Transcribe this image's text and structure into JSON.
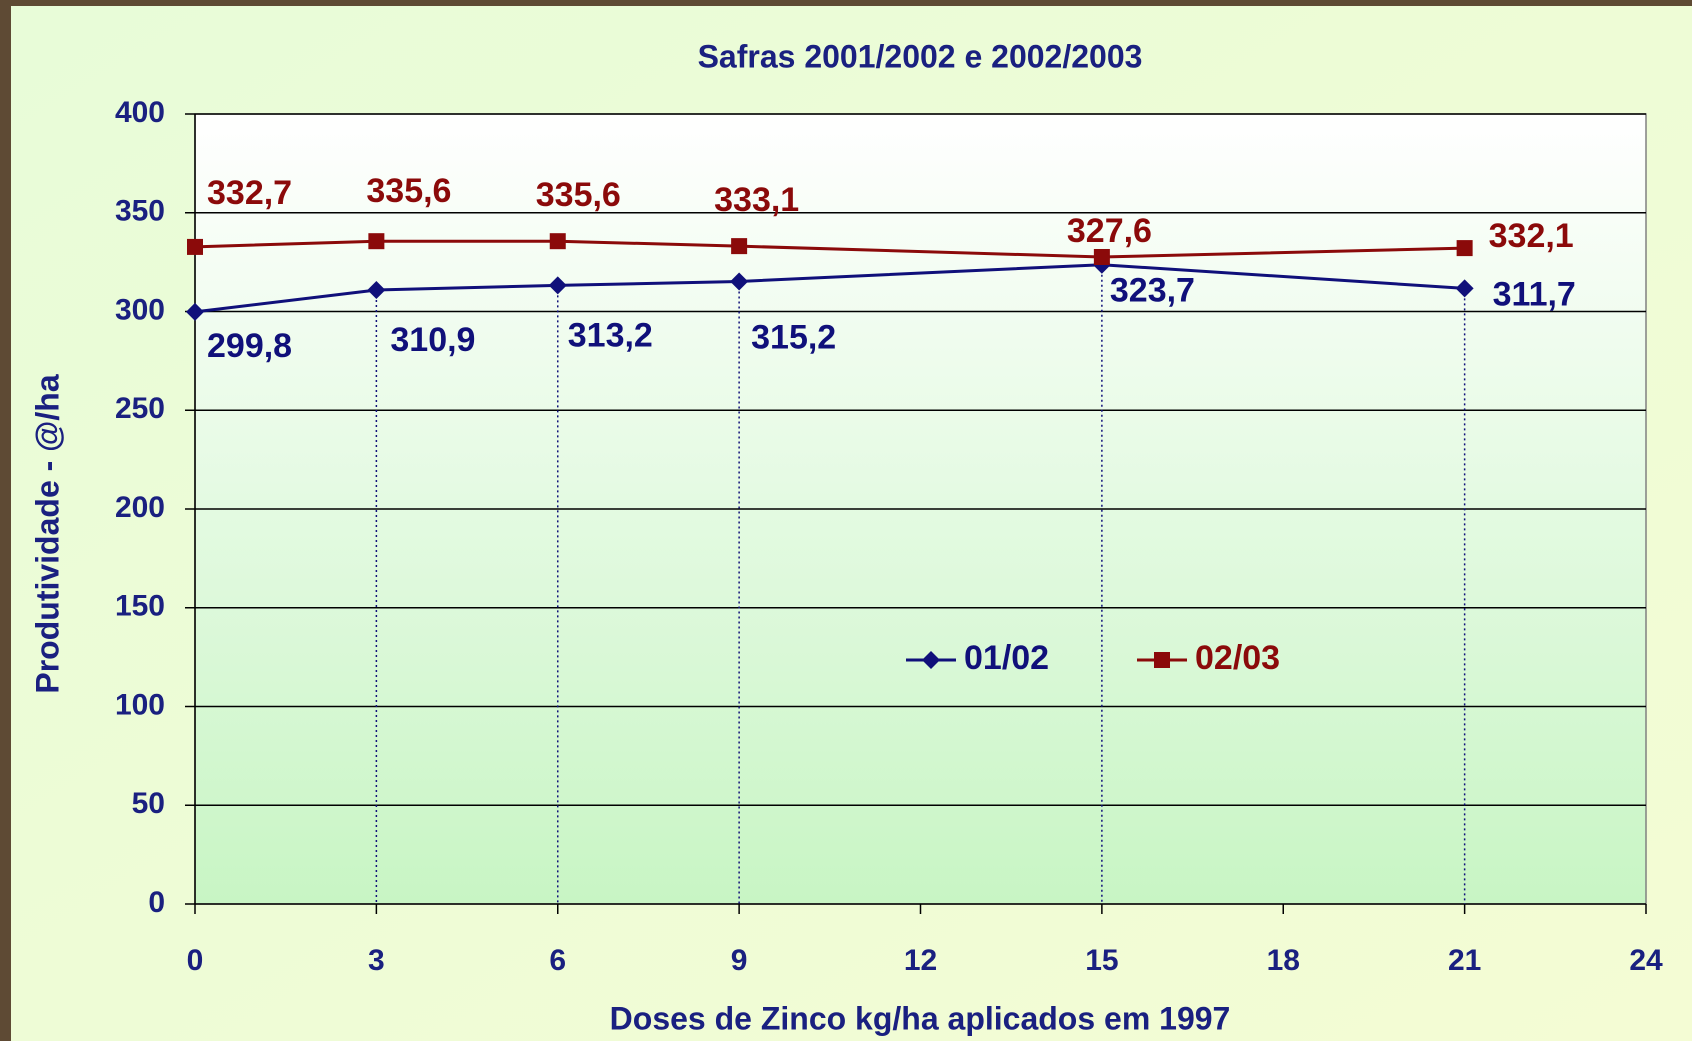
{
  "chart_data": {
    "type": "line",
    "title": "Safras  2001/2002  e  2002/2003",
    "x_label": "Doses de Zinco kg/ha aplicados em 1997",
    "y_label": "Produtividade -   @/ha",
    "x": [
      0,
      3,
      6,
      9,
      15,
      21
    ],
    "xlim": [
      0,
      24
    ],
    "xticks": [
      0,
      3,
      6,
      9,
      12,
      15,
      18,
      21,
      24
    ],
    "ylim": [
      0,
      400
    ],
    "yticks": [
      0,
      50,
      100,
      150,
      200,
      250,
      300,
      350,
      400
    ],
    "grid": true,
    "legend": "center",
    "series": [
      {
        "name": "01/02",
        "color": "#10107a",
        "marker": "diamond",
        "values": [
          299.8,
          310.9,
          313.2,
          315.2,
          323.7,
          311.7
        ],
        "value_labels": [
          "299,8",
          "310,9",
          "313,2",
          "315,2",
          "323,7",
          "311,7"
        ]
      },
      {
        "name": "02/03",
        "color": "#8b0a0a",
        "marker": "square",
        "values": [
          332.7,
          335.6,
          335.6,
          333.1,
          327.6,
          332.1
        ],
        "value_labels": [
          "332,7",
          "335,6",
          "335,6",
          "333,1",
          "327,6",
          "332,1"
        ]
      }
    ]
  }
}
